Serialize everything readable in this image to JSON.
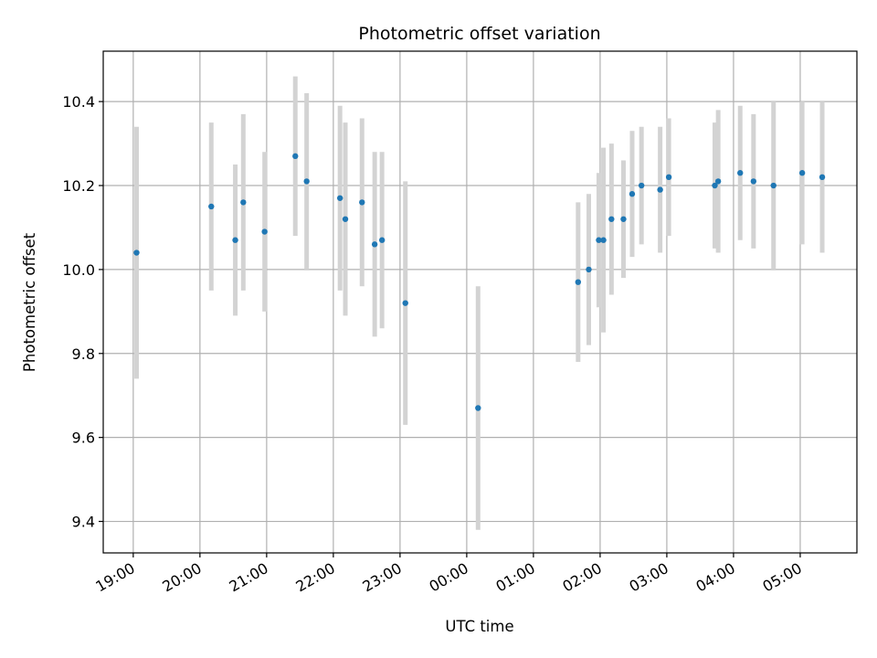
{
  "chart_data": {
    "type": "scatter",
    "title": "Photometric offset variation",
    "xlabel": "UTC time",
    "ylabel": "Photometric offset",
    "x_unit": "UTC time of day (hours past 19:00 reference day; values above 24 fall on the next day)",
    "xlim": [
      18.55,
      29.85
    ],
    "ylim": [
      9.325,
      10.52
    ],
    "grid": true,
    "x_ticks": [
      {
        "value": 19,
        "label": "19:00"
      },
      {
        "value": 20,
        "label": "20:00"
      },
      {
        "value": 21,
        "label": "21:00"
      },
      {
        "value": 22,
        "label": "22:00"
      },
      {
        "value": 23,
        "label": "23:00"
      },
      {
        "value": 24,
        "label": "00:00"
      },
      {
        "value": 25,
        "label": "01:00"
      },
      {
        "value": 26,
        "label": "02:00"
      },
      {
        "value": 27,
        "label": "03:00"
      },
      {
        "value": 28,
        "label": "04:00"
      },
      {
        "value": 29,
        "label": "05:00"
      }
    ],
    "y_ticks": [
      {
        "value": 9.4,
        "label": "9.4"
      },
      {
        "value": 9.6,
        "label": "9.6"
      },
      {
        "value": 9.8,
        "label": "9.8"
      },
      {
        "value": 10.0,
        "label": "10.0"
      },
      {
        "value": 10.2,
        "label": "10.2"
      },
      {
        "value": 10.4,
        "label": "10.4"
      }
    ],
    "point_color": "#1f77b4",
    "errorbar_color": "#d3d3d3",
    "series": [
      {
        "points": [
          {
            "x": 19.05,
            "y": 10.04,
            "err": 0.3
          },
          {
            "x": 20.17,
            "y": 10.15,
            "err": 0.2
          },
          {
            "x": 20.53,
            "y": 10.07,
            "err": 0.18
          },
          {
            "x": 20.65,
            "y": 10.16,
            "err": 0.21
          },
          {
            "x": 20.97,
            "y": 10.09,
            "err": 0.19
          },
          {
            "x": 21.43,
            "y": 10.27,
            "err": 0.19
          },
          {
            "x": 21.6,
            "y": 10.21,
            "err": 0.21
          },
          {
            "x": 22.1,
            "y": 10.17,
            "err": 0.22
          },
          {
            "x": 22.18,
            "y": 10.12,
            "err": 0.23
          },
          {
            "x": 22.43,
            "y": 10.16,
            "err": 0.2
          },
          {
            "x": 22.62,
            "y": 10.06,
            "err": 0.22
          },
          {
            "x": 22.73,
            "y": 10.07,
            "err": 0.21
          },
          {
            "x": 23.08,
            "y": 9.92,
            "err": 0.29
          },
          {
            "x": 24.17,
            "y": 9.67,
            "err": 0.29
          },
          {
            "x": 25.67,
            "y": 9.97,
            "err": 0.19
          },
          {
            "x": 25.83,
            "y": 10.0,
            "err": 0.18
          },
          {
            "x": 25.98,
            "y": 10.07,
            "err": 0.16
          },
          {
            "x": 26.05,
            "y": 10.07,
            "err": 0.22
          },
          {
            "x": 26.17,
            "y": 10.12,
            "err": 0.18
          },
          {
            "x": 26.35,
            "y": 10.12,
            "err": 0.14
          },
          {
            "x": 26.48,
            "y": 10.18,
            "err": 0.15
          },
          {
            "x": 26.62,
            "y": 10.2,
            "err": 0.14
          },
          {
            "x": 26.9,
            "y": 10.19,
            "err": 0.15
          },
          {
            "x": 27.03,
            "y": 10.22,
            "err": 0.14
          },
          {
            "x": 27.72,
            "y": 10.2,
            "err": 0.15
          },
          {
            "x": 27.77,
            "y": 10.21,
            "err": 0.17
          },
          {
            "x": 28.1,
            "y": 10.23,
            "err": 0.16
          },
          {
            "x": 28.3,
            "y": 10.21,
            "err": 0.16
          },
          {
            "x": 28.6,
            "y": 10.2,
            "err": 0.2
          },
          {
            "x": 29.03,
            "y": 10.23,
            "err": 0.17
          },
          {
            "x": 29.33,
            "y": 10.22,
            "err": 0.18
          }
        ]
      }
    ]
  }
}
